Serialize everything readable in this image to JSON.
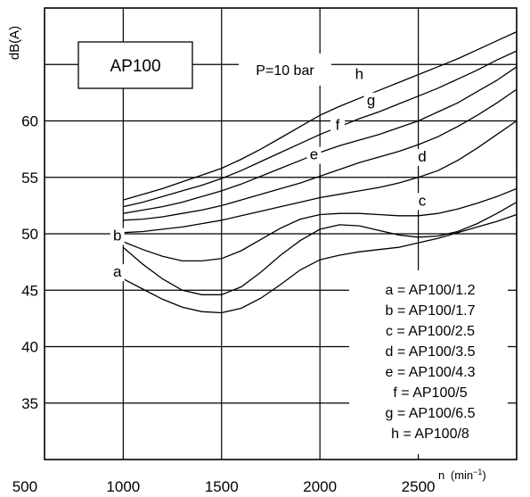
{
  "chart_data": {
    "type": "line",
    "title": "AP100",
    "condition": "P=10 bar",
    "ylabel": "dB(A)",
    "xlabel": "n",
    "xunit_base": "(min",
    "xunit_exp": "−1",
    "xunit_close": ")",
    "xlim": [
      600,
      3000
    ],
    "ylim": [
      30,
      70
    ],
    "x_ticks": [
      500,
      1000,
      1500,
      2000,
      2500
    ],
    "y_ticks": [
      35,
      40,
      45,
      50,
      55,
      60
    ],
    "x_grid": [
      1000,
      1500,
      2000,
      2500
    ],
    "y_grid": [
      35,
      40,
      45,
      50,
      55,
      60,
      65
    ],
    "grid": true,
    "legend_position": "bottom-right",
    "series": [
      {
        "name": "a",
        "legend": "a = AP100/1.2",
        "x": [
          1000,
          1100,
          1200,
          1300,
          1400,
          1500,
          1600,
          1700,
          1800,
          1900,
          2000,
          2100,
          2200,
          2300,
          2400,
          2500,
          2600,
          2700,
          2800,
          2900,
          3000
        ],
        "y": [
          46.0,
          45.1,
          44.2,
          43.5,
          43.1,
          43.0,
          43.4,
          44.3,
          45.5,
          46.8,
          47.7,
          48.1,
          48.4,
          48.6,
          48.8,
          49.2,
          49.6,
          50.1,
          50.6,
          51.1,
          51.7
        ]
      },
      {
        "name": "b",
        "legend": "b = AP100/1.7",
        "x": [
          1000,
          1100,
          1200,
          1300,
          1400,
          1500,
          1600,
          1700,
          1800,
          1900,
          2000,
          2100,
          2200,
          2300,
          2400,
          2500,
          2600,
          2700,
          2800,
          2900,
          3000
        ],
        "y": [
          48.8,
          47.3,
          46.0,
          45.0,
          44.6,
          44.6,
          45.3,
          46.6,
          48.1,
          49.4,
          50.4,
          50.8,
          50.7,
          50.3,
          49.9,
          49.7,
          49.8,
          50.2,
          50.9,
          51.8,
          52.8
        ]
      },
      {
        "name": "c",
        "legend": "c = AP100/2.5",
        "x": [
          1000,
          1100,
          1200,
          1300,
          1400,
          1500,
          1600,
          1700,
          1800,
          1900,
          2000,
          2100,
          2200,
          2300,
          2400,
          2500,
          2600,
          2700,
          2800,
          2900,
          3000
        ],
        "y": [
          49.3,
          48.6,
          48.0,
          47.6,
          47.6,
          47.8,
          48.5,
          49.5,
          50.5,
          51.3,
          51.7,
          51.8,
          51.8,
          51.7,
          51.6,
          51.6,
          51.8,
          52.2,
          52.7,
          53.3,
          54.0
        ]
      },
      {
        "name": "d",
        "legend": "d = AP100/3.5",
        "x": [
          1000,
          1100,
          1200,
          1300,
          1400,
          1500,
          1600,
          1700,
          1800,
          1900,
          2000,
          2100,
          2200,
          2300,
          2400,
          2500,
          2600,
          2700,
          2800,
          2900,
          3000
        ],
        "y": [
          50.1,
          50.2,
          50.4,
          50.6,
          50.9,
          51.2,
          51.6,
          52.0,
          52.4,
          52.8,
          53.2,
          53.5,
          53.8,
          54.1,
          54.5,
          55.0,
          55.6,
          56.5,
          57.6,
          58.8,
          60.0
        ]
      },
      {
        "name": "e",
        "legend": "e = AP100/4.3",
        "x": [
          1000,
          1100,
          1200,
          1300,
          1400,
          1500,
          1600,
          1700,
          1800,
          1900,
          2000,
          2100,
          2200,
          2300,
          2400,
          2500,
          2600,
          2700,
          2800,
          2900,
          3000
        ],
        "y": [
          51.2,
          51.3,
          51.5,
          51.8,
          52.1,
          52.5,
          53.0,
          53.5,
          54.0,
          54.5,
          55.1,
          55.7,
          56.3,
          56.8,
          57.3,
          57.9,
          58.6,
          59.5,
          60.5,
          61.6,
          62.8
        ]
      },
      {
        "name": "f",
        "legend": "f = AP100/5",
        "x": [
          1000,
          1100,
          1200,
          1300,
          1400,
          1500,
          1600,
          1700,
          1800,
          1900,
          2000,
          2100,
          2200,
          2300,
          2400,
          2500,
          2600,
          2700,
          2800,
          2900,
          3000
        ],
        "y": [
          51.8,
          52.1,
          52.4,
          52.8,
          53.3,
          53.8,
          54.4,
          55.1,
          55.8,
          56.5,
          57.2,
          57.8,
          58.3,
          58.8,
          59.4,
          60.0,
          60.8,
          61.6,
          62.6,
          63.6,
          64.8
        ]
      },
      {
        "name": "g",
        "legend": "g = AP100/6.5",
        "x": [
          1000,
          1100,
          1200,
          1300,
          1400,
          1500,
          1600,
          1700,
          1800,
          1900,
          2000,
          2100,
          2200,
          2300,
          2400,
          2500,
          2600,
          2700,
          2800,
          2900,
          3000
        ],
        "y": [
          52.4,
          52.8,
          53.3,
          53.8,
          54.3,
          54.9,
          55.6,
          56.4,
          57.2,
          58.0,
          58.8,
          59.5,
          60.2,
          60.8,
          61.5,
          62.2,
          62.9,
          63.7,
          64.5,
          65.4,
          66.2
        ]
      },
      {
        "name": "h",
        "legend": "h = AP100/8",
        "x": [
          1000,
          1100,
          1200,
          1300,
          1400,
          1500,
          1600,
          1700,
          1800,
          1900,
          2000,
          2100,
          2200,
          2300,
          2400,
          2500,
          2600,
          2700,
          2800,
          2900,
          3000
        ],
        "y": [
          53.0,
          53.5,
          54.0,
          54.6,
          55.2,
          55.8,
          56.6,
          57.5,
          58.5,
          59.5,
          60.5,
          61.3,
          62.0,
          62.7,
          63.4,
          64.1,
          64.8,
          65.5,
          66.3,
          67.1,
          67.9
        ]
      }
    ],
    "curve_labels": [
      {
        "text": "a",
        "x": 970,
        "y": 46.2
      },
      {
        "text": "b",
        "x": 970,
        "y": 49.4
      },
      {
        "text": "c",
        "x": 2520,
        "y": 52.5
      },
      {
        "text": "d",
        "x": 2520,
        "y": 56.4
      },
      {
        "text": "e",
        "x": 1970,
        "y": 56.6
      },
      {
        "text": "f",
        "x": 2090,
        "y": 59.2
      },
      {
        "text": "g",
        "x": 2260,
        "y": 61.4
      },
      {
        "text": "h",
        "x": 2200,
        "y": 63.7
      }
    ]
  }
}
